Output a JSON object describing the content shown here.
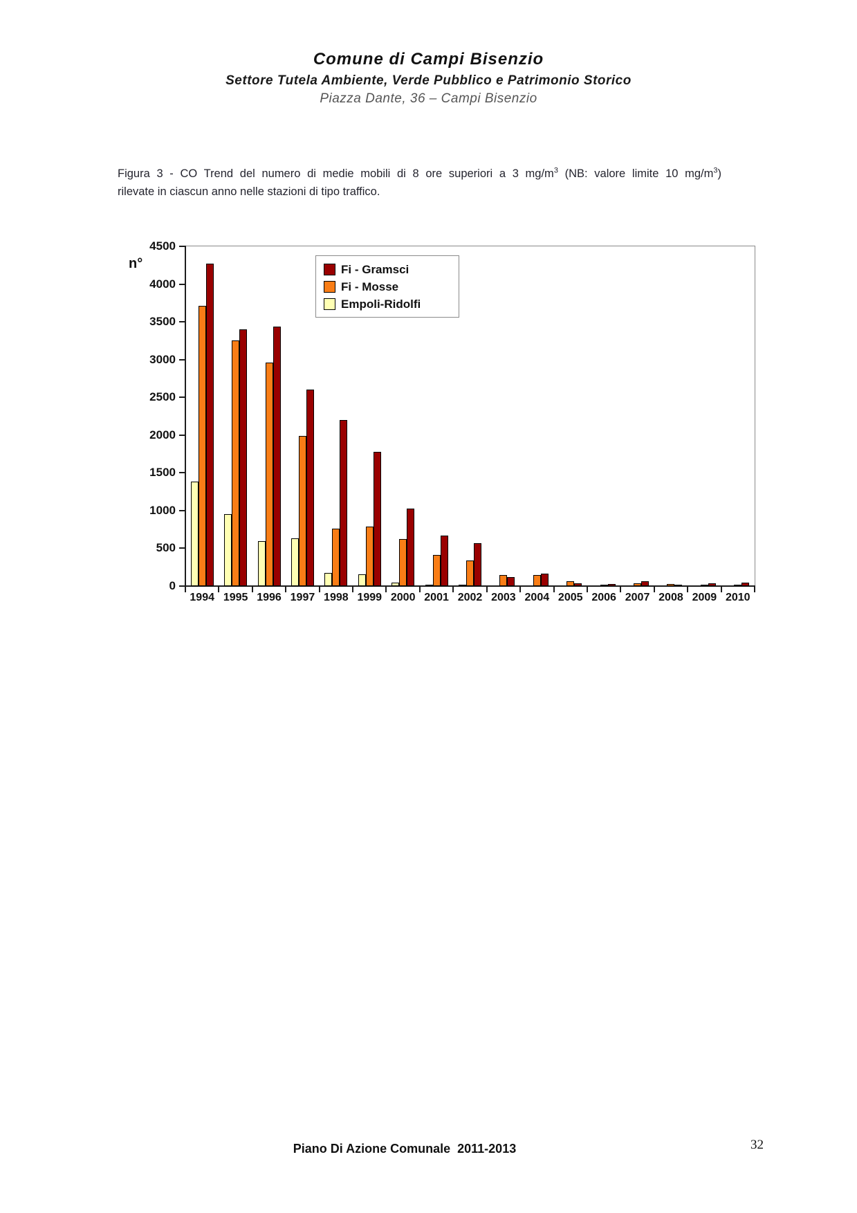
{
  "header": {
    "line1": "Comune di Campi Bisenzio",
    "line2": "Settore Tutela Ambiente, Verde Pubblico e Patrimonio Storico",
    "line3": "Piazza Dante, 36 – Campi Bisenzio"
  },
  "caption": {
    "l1a": "Figura 3 - CO Trend del numero di medie mobili di 8 ore superiori a 3 mg/m",
    "sup": "3",
    "l1b": " (NB: valore limite 10 mg/m",
    "l1c": ")",
    "line2": "rilevate in ciascun anno nelle stazioni di tipo traffico."
  },
  "chart_data": {
    "type": "bar",
    "title": "",
    "xlabel": "",
    "ylabel": "n°",
    "ylim": [
      0,
      4500
    ],
    "ytick_step": 500,
    "grid": false,
    "legend_position": "top-center-inside",
    "categories": [
      "1994",
      "1995",
      "1996",
      "1997",
      "1998",
      "1999",
      "2000",
      "2001",
      "2002",
      "2003",
      "2004",
      "2005",
      "2006",
      "2007",
      "2008",
      "2009",
      "2010"
    ],
    "series": [
      {
        "name": "Fi - Gramsci",
        "color": "#990000",
        "values": [
          4270,
          3400,
          3440,
          2600,
          2200,
          1780,
          1030,
          670,
          570,
          120,
          165,
          40,
          30,
          60,
          10,
          35,
          45
        ]
      },
      {
        "name": "Fi - Mosse",
        "color": "#F97D16",
        "values": [
          3710,
          3250,
          2960,
          1990,
          760,
          790,
          620,
          410,
          340,
          150,
          150,
          60,
          10,
          40,
          30,
          5,
          5
        ]
      },
      {
        "name": "Empoli-Ridolfi",
        "color": "#FFFFB3",
        "values": [
          1380,
          950,
          600,
          630,
          170,
          160,
          50,
          10,
          10,
          0,
          0,
          0,
          0,
          0,
          0,
          0,
          0
        ]
      }
    ],
    "bar_outline_color": "#000000"
  },
  "footer": {
    "text": "Piano Di Azione Comunale  2011-2013",
    "page_number": "32"
  }
}
